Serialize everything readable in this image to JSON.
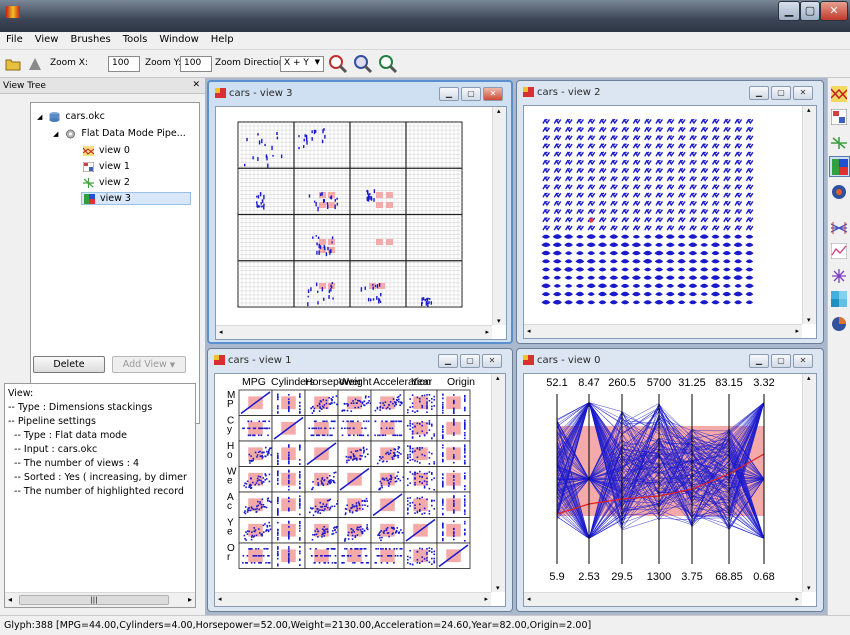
{
  "menu": [
    "File",
    "View",
    "Brushes",
    "Tools",
    "Window",
    "Help"
  ],
  "toolbar": {
    "zoom_x_label": "Zoom X:",
    "zoom_x_value": "100",
    "zoom_y_label": "Zoom Y:",
    "zoom_y_value": "100",
    "zoom_direction_label": "Zoom Direction:",
    "zoom_direction_value": "X + Y"
  },
  "left_panel": {
    "title": "View Tree",
    "tree": [
      {
        "label": "cars.okc",
        "icon": "database-icon"
      },
      {
        "label": "Flat Data Mode Pipe...",
        "icon": "gear-icon"
      },
      {
        "label": "view 0",
        "icon": "parallel-coordinates-icon"
      },
      {
        "label": "view 1",
        "icon": "scatterplot-matrix-icon"
      },
      {
        "label": "view 2",
        "icon": "glyph-view-icon"
      },
      {
        "label": "view 3",
        "icon": "dimension-stacking-icon"
      }
    ],
    "delete_label": "Delete",
    "add_view_label": "Add View",
    "info_lines": [
      "View:",
      "-- Type : Dimensions stackings",
      "-- Pipeline settings",
      "  -- Type : Flat data mode",
      "  -- Input : cars.okc",
      "  -- The number of views : 4",
      "  -- Sorted : Yes ( increasing, by dimer",
      "  -- The number of highlighted record"
    ],
    "scroll_glyph": "|||"
  },
  "windows": {
    "view3_title": "cars - view 3",
    "view2_title": "cars - view 2",
    "view1_title": "cars - view 1",
    "view0_title": "cars - view 0"
  },
  "scatter_matrix": {
    "columns": [
      "MPG",
      "Cylinders",
      "Horsepower",
      "Weight",
      "Acceleration",
      "Year",
      "Origin"
    ],
    "row_labels": [
      [
        "M",
        "P"
      ],
      [
        "C",
        "y"
      ],
      [
        "H",
        "o"
      ],
      [
        "W",
        "e"
      ],
      [
        "A",
        "c"
      ],
      [
        "Y",
        "e"
      ],
      [
        "O",
        "r"
      ]
    ]
  },
  "parallel_coords": {
    "top_values": [
      "52.1",
      "8.47",
      "260.5",
      "5700",
      "31.25",
      "83.15",
      "3.32"
    ],
    "bottom_values": [
      "5.9",
      "2.53",
      "29.5",
      "1300",
      "3.75",
      "68.85",
      "0.68"
    ]
  },
  "status": "Glyph:388 [MPG=44.00,Cylinders=4.00,Horsepower=52.00,Weight=2130.00,Acceleration=24.60,Year=82.00,Origin=2.00]",
  "colors": {
    "data": "#1a1acc",
    "highlight": "#f5aaaa",
    "brush_line": "#e02020"
  }
}
